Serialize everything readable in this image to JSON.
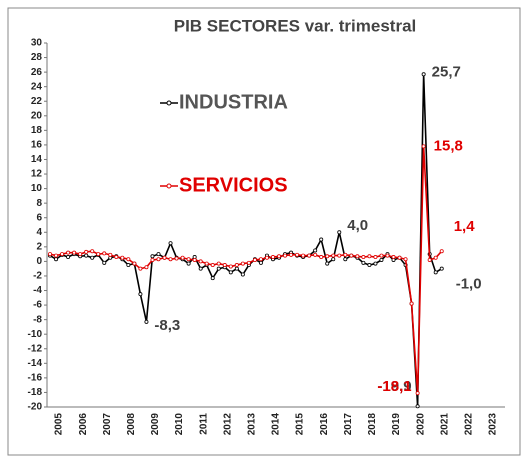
{
  "chart_data": {
    "type": "line",
    "title": "PIB SECTORES var. trimestral",
    "categories": [
      "2005",
      null,
      null,
      null,
      "2006",
      null,
      null,
      null,
      "2007",
      null,
      null,
      null,
      "2008",
      null,
      null,
      null,
      "2009",
      null,
      null,
      null,
      "2010",
      null,
      null,
      null,
      "2011",
      null,
      null,
      null,
      "2012",
      null,
      null,
      null,
      "2013",
      null,
      null,
      null,
      "2014",
      null,
      null,
      null,
      "2015",
      null,
      null,
      null,
      "2016",
      null,
      null,
      null,
      "2017",
      null,
      null,
      null,
      "2018",
      null,
      null,
      null,
      "2019",
      null,
      null,
      null,
      "2020",
      null,
      null,
      null,
      "2021",
      null,
      null,
      null,
      "2022",
      null,
      null,
      null,
      "2023",
      null,
      null,
      null
    ],
    "series": [
      {
        "name": "INDUSTRIA",
        "color": "#000000",
        "label_color": "#404040",
        "values": [
          0.8,
          0.3,
          0.9,
          0.6,
          1.0,
          0.7,
          0.8,
          0.5,
          0.9,
          -0.2,
          0.5,
          0.7,
          0.3,
          -0.5,
          -0.3,
          -4.5,
          -8.3,
          0.7,
          1.0,
          0.5,
          2.5,
          0.5,
          0.3,
          -0.3,
          0.6,
          -1.0,
          -0.5,
          -2.3,
          -1.0,
          -0.8,
          -1.5,
          -1.0,
          -1.8,
          -0.5,
          0.3,
          -0.2,
          0.8,
          0.3,
          0.5,
          1.0,
          1.2,
          0.8,
          0.6,
          0.8,
          1.5,
          3.0,
          -0.3,
          0.3,
          4.0,
          0.3,
          0.8,
          0.5,
          -0.2,
          -0.5,
          -0.3,
          0.2,
          1.0,
          0.2,
          0.5,
          -0.5,
          -5.8,
          -19.9,
          25.7,
          1.0,
          -1.5,
          -1.0,
          null,
          null,
          null,
          null,
          null,
          null,
          null,
          null,
          null,
          null
        ],
        "value_labels": [
          null,
          null,
          null,
          null,
          null,
          null,
          null,
          null,
          null,
          null,
          null,
          null,
          null,
          null,
          null,
          null,
          "-8,3",
          null,
          null,
          null,
          null,
          null,
          null,
          null,
          null,
          null,
          null,
          null,
          null,
          null,
          null,
          null,
          null,
          null,
          null,
          null,
          null,
          null,
          null,
          null,
          null,
          null,
          null,
          null,
          null,
          null,
          null,
          null,
          "4,0",
          null,
          null,
          null,
          null,
          null,
          null,
          null,
          null,
          null,
          null,
          null,
          null,
          "-19,9",
          "25,7",
          null,
          null,
          "-1,0",
          null,
          null,
          null,
          null,
          null,
          null,
          null,
          null,
          null,
          null
        ]
      },
      {
        "name": "SERVICIOS",
        "color": "#e00000",
        "label_color": "#e00000",
        "values": [
          1.0,
          0.8,
          1.0,
          1.2,
          1.2,
          1.0,
          1.3,
          1.4,
          1.0,
          1.1,
          0.9,
          0.6,
          0.5,
          0.3,
          -0.3,
          -1.0,
          -0.8,
          0.2,
          0.3,
          0.5,
          0.3,
          0.4,
          0.5,
          0.3,
          0.2,
          0.0,
          -0.3,
          -0.5,
          -0.3,
          -0.5,
          -0.7,
          -0.5,
          -0.3,
          -0.2,
          0.2,
          0.3,
          0.5,
          0.6,
          0.7,
          0.8,
          0.9,
          0.9,
          0.8,
          0.8,
          0.9,
          0.6,
          0.7,
          0.8,
          0.8,
          0.9,
          0.8,
          0.7,
          0.6,
          0.7,
          0.6,
          0.8,
          0.8,
          0.6,
          0.5,
          0.3,
          -5.8,
          -18.1,
          15.8,
          0.2,
          0.5,
          1.4,
          null,
          null,
          null,
          null,
          null,
          null,
          null,
          null,
          null,
          null
        ],
        "value_labels": [
          null,
          null,
          null,
          null,
          null,
          null,
          null,
          null,
          null,
          null,
          null,
          null,
          null,
          null,
          null,
          null,
          null,
          null,
          null,
          null,
          null,
          null,
          null,
          null,
          null,
          null,
          null,
          null,
          null,
          null,
          null,
          null,
          null,
          null,
          null,
          null,
          null,
          null,
          null,
          null,
          null,
          null,
          null,
          null,
          null,
          null,
          null,
          null,
          null,
          null,
          null,
          null,
          null,
          null,
          null,
          null,
          null,
          null,
          null,
          null,
          null,
          "-18,1",
          "15,8",
          null,
          null,
          "1,4",
          null,
          null,
          null,
          null,
          null,
          null,
          null,
          null,
          null,
          null
        ]
      }
    ],
    "ylim": [
      -20,
      30
    ],
    "yticks": [
      -20,
      -18,
      -16,
      -14,
      -12,
      -10,
      -8,
      -6,
      -4,
      -2,
      0,
      2,
      4,
      6,
      8,
      10,
      12,
      14,
      16,
      18,
      20,
      22,
      24,
      26,
      28,
      30
    ],
    "grid": false
  }
}
